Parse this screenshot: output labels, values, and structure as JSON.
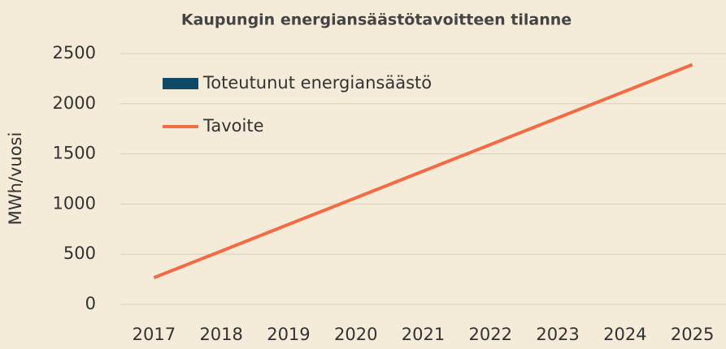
{
  "chart_data": {
    "type": "bar",
    "title": "Kaupungin energiansäästötavoitteen tilanne",
    "y_label": "MWh/vuosi",
    "categories": [
      "2017",
      "2018",
      "2019",
      "2020",
      "2021",
      "2022",
      "2023",
      "2024",
      "2025"
    ],
    "series": [
      {
        "name": "Toteutunut energiansäästö",
        "type": "bar",
        "color": "#0e4a66",
        "values": [
          null,
          null,
          null,
          null,
          null,
          null,
          null,
          null,
          null
        ]
      },
      {
        "name": "Tavoite",
        "type": "line",
        "color": "#f26b43",
        "values": [
          266,
          531,
          797,
          1062,
          1328,
          1593,
          1859,
          2124,
          2390
        ]
      }
    ],
    "ylim": [
      0,
      2500
    ],
    "yticks": [
      0,
      500,
      1000,
      1500,
      2000,
      2500
    ],
    "grid": true,
    "legend": "top-left"
  }
}
